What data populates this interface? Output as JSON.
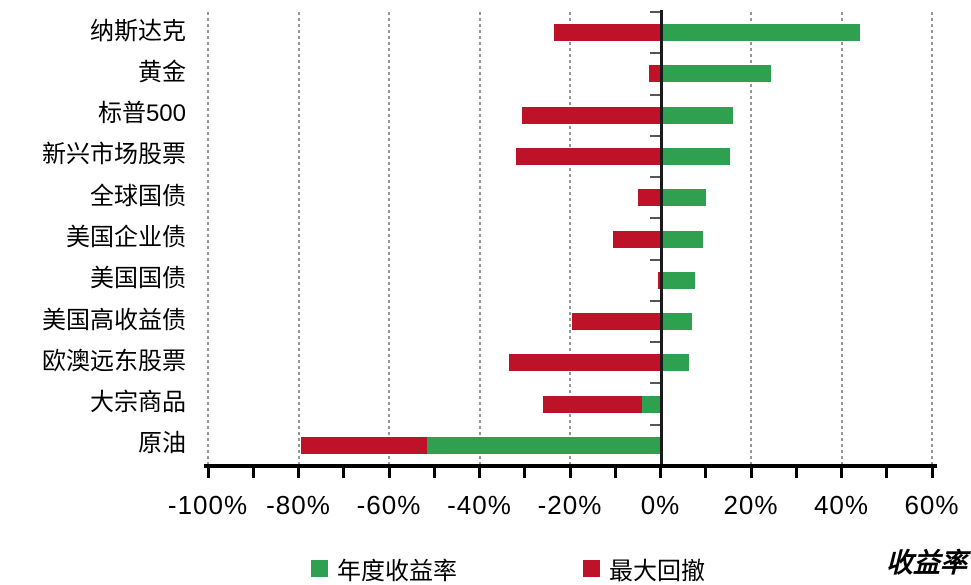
{
  "chart_data": {
    "type": "bar",
    "orientation": "horizontal",
    "title": "",
    "xlabel": "收益率",
    "ylabel": "",
    "xlim": [
      -100,
      60
    ],
    "x_major_tick_step": 20,
    "x_minor_tick_step": 10,
    "x_tick_labels": [
      "-100%",
      "-80%",
      "-60%",
      "-40%",
      "-20%",
      "0%",
      "20%",
      "40%",
      "60%"
    ],
    "grid": "vertical dashed gridlines every 20%, solid black line at 0%",
    "legend_position": "bottom",
    "categories": [
      "纳斯达克",
      "黄金",
      "标普500",
      "新兴市场股票",
      "全球国债",
      "美国企业债",
      "美国国债",
      "美国高收益债",
      "欧澳远东股票",
      "大宗商品",
      "原油"
    ],
    "series": [
      {
        "name": "年度收益率",
        "color": "#2EA04F",
        "values": [
          44,
          24.5,
          16,
          15.3,
          10,
          9.5,
          7.7,
          7,
          6.2,
          -4,
          -51.5
        ]
      },
      {
        "name": "最大回撤",
        "color": "#BE1228",
        "values": [
          -23.5,
          -2.6,
          -30.6,
          -32,
          -5,
          -10.5,
          -0.5,
          -19.6,
          -33.5,
          -26,
          -79.5
        ]
      }
    ],
    "note": "红色最大回撤条从 min(0, 年度收益率) 延伸至回撤值；绿色收益条从 0 延伸至收益值，两条同行等高对齐"
  },
  "legend": {
    "items": [
      {
        "label": "年度收益率",
        "color": "#2EA04F"
      },
      {
        "label": "最大回撤",
        "color": "#BE1228"
      }
    ]
  },
  "axis_title": "收益率"
}
